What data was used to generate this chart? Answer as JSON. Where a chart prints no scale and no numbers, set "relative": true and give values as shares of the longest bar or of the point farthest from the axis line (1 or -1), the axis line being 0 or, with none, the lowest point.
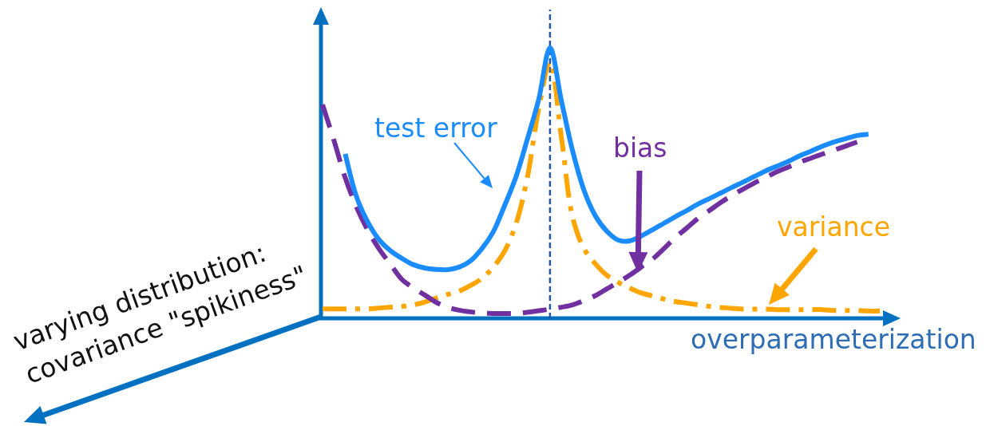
{
  "chart_data": {
    "type": "line",
    "relative": true,
    "xlabel": "overparameterization",
    "annotations": [
      "varying distribution:\ncovariance \"spikiness\""
    ],
    "categories": [
      null,
      null,
      null,
      null,
      null,
      null,
      null,
      null,
      null,
      null,
      null,
      null,
      null,
      null,
      null,
      null,
      null,
      null,
      null,
      null,
      null,
      null,
      null,
      null,
      null,
      null,
      null,
      null,
      null,
      null,
      null,
      null,
      null,
      null,
      null,
      null,
      null,
      null,
      null,
      null,
      null,
      null,
      null,
      null,
      null,
      null,
      null,
      null,
      null,
      null
    ],
    "series": [
      {
        "name": "test error",
        "color": "#1a8cff",
        "line_style": "solid",
        "values": [
          null,
          null,
          0.608,
          0.448,
          0.354,
          0.289,
          0.249,
          0.221,
          0.198,
          0.186,
          0.181,
          0.18,
          0.189,
          0.212,
          0.257,
          0.319,
          0.416,
          0.522,
          0.661,
          0.808,
          1.0,
          0.805,
          0.617,
          0.472,
          0.378,
          0.322,
          0.289,
          0.286,
          0.304,
          0.327,
          0.351,
          0.375,
          0.398,
          0.422,
          0.442,
          0.463,
          0.484,
          0.504,
          0.525,
          0.546,
          0.563,
          0.581,
          0.602,
          0.619,
          0.637,
          0.652,
          0.664,
          0.676,
          0.681,
          null
        ]
      },
      {
        "name": "bias",
        "color": "#7030a0",
        "line_style": "dashed",
        "values": [
          0.79,
          0.658,
          0.519,
          0.41,
          0.324,
          0.255,
          0.198,
          0.143,
          0.112,
          0.086,
          0.059,
          0.041,
          0.03,
          0.024,
          0.019,
          0.018,
          0.018,
          0.018,
          0.022,
          0.028,
          0.034,
          0.041,
          0.05,
          0.066,
          0.084,
          0.109,
          0.133,
          0.159,
          0.189,
          0.218,
          0.257,
          0.298,
          0.333,
          0.369,
          0.398,
          0.428,
          0.454,
          0.478,
          0.501,
          0.522,
          0.543,
          0.56,
          0.578,
          0.593,
          0.608,
          0.622,
          0.637,
          0.652,
          null,
          null
        ]
      },
      {
        "name": "variance",
        "color": "#ffa500",
        "line_style": "dashdot",
        "values": [
          0.035,
          0.035,
          0.035,
          0.035,
          0.035,
          0.038,
          0.041,
          0.044,
          0.05,
          0.06,
          0.075,
          0.088,
          0.1,
          0.121,
          0.147,
          0.189,
          0.248,
          0.348,
          0.519,
          0.773,
          0.947,
          0.67,
          0.372,
          0.257,
          0.201,
          0.159,
          0.133,
          0.112,
          0.094,
          0.083,
          0.071,
          0.062,
          0.056,
          0.05,
          0.044,
          0.04,
          0.037,
          0.034,
          0.034,
          0.034,
          0.032,
          0.032,
          0.032,
          0.032,
          0.032,
          0.029,
          0.029,
          0.029,
          0.027,
          0.027
        ]
      }
    ]
  }
}
